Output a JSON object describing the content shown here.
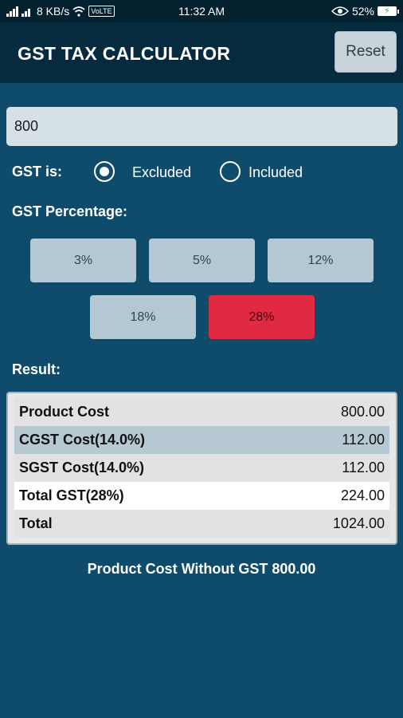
{
  "status_bar": {
    "network_speed": "8 KB/s",
    "volte": "VoLTE",
    "time": "11:32 AM",
    "battery": "52%"
  },
  "header": {
    "title": "GST TAX CALCULATOR",
    "reset_label": "Reset"
  },
  "amount_input": {
    "value": "800"
  },
  "gst_mode": {
    "label": "GST is:",
    "options": [
      "Excluded",
      "Included"
    ],
    "selected": "Excluded"
  },
  "gst_percentage": {
    "label": "GST Percentage:",
    "rates": [
      "3%",
      "5%",
      "12%",
      "18%",
      "28%"
    ],
    "selected": "28%"
  },
  "result": {
    "label": "Result:",
    "rows": [
      {
        "label": "Product Cost",
        "value": "800.00"
      },
      {
        "label": "CGST Cost(14.0%)",
        "value": "112.00"
      },
      {
        "label": "SGST Cost(14.0%)",
        "value": "112.00"
      },
      {
        "label": "Total GST(28%)",
        "value": "224.00"
      },
      {
        "label": "Total",
        "value": "1024.00"
      }
    ]
  },
  "summary": "Product Cost Without GST 800.00",
  "colors": {
    "background": "#0f4c6c",
    "header": "#062b3f",
    "active_rate": "#e02a43",
    "rate_button": "#b4c8d2"
  }
}
